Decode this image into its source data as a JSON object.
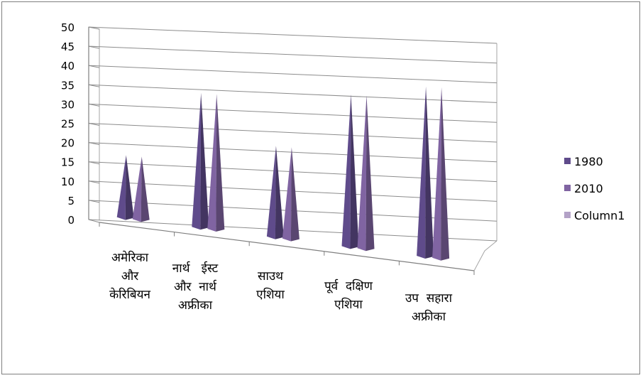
{
  "chart_data": {
    "type": "bar",
    "shape": "cone-3d",
    "categories": [
      [
        "अमेरिका",
        "और",
        "केरिबियन"
      ],
      [
        "नार्थ   ईस्ट",
        "और  नार्थ",
        "अफ्रीका"
      ],
      [
        "साउथ",
        "एशिया"
      ],
      [
        "पूर्व  दक्षिण",
        "एशिया"
      ],
      [
        "उप  सहारा",
        "अफ्रीका"
      ]
    ],
    "series": [
      {
        "name": "1980",
        "color": "#5f4b8b",
        "values": [
          17,
          35,
          23,
          37,
          40
        ]
      },
      {
        "name": "2010",
        "color": "#8064a2",
        "values": [
          17,
          35,
          23,
          37,
          40
        ]
      },
      {
        "name": "Column1",
        "color": "#b3a2c7",
        "values": [
          0,
          0,
          0,
          0,
          0
        ]
      }
    ],
    "yticks": [
      "0",
      "5",
      "10",
      "15",
      "20",
      "25",
      "30",
      "35",
      "40",
      "45",
      "50"
    ],
    "ylim": [
      0,
      50
    ],
    "grid": true,
    "legend_position": "right"
  }
}
